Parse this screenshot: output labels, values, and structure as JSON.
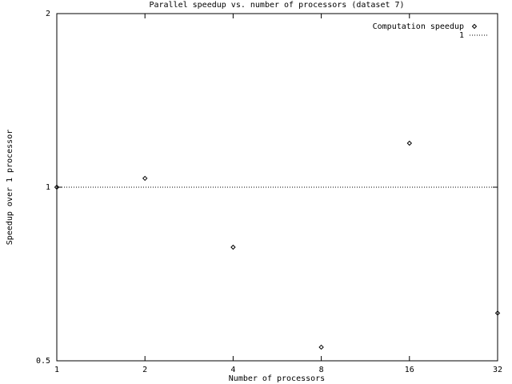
{
  "chart_data": {
    "type": "scatter",
    "title": "Parallel speedup vs. number of processors (dataset 7)",
    "x_label": "Number of processors",
    "y_label": "Speedup over 1 processor",
    "x": [
      1,
      2,
      4,
      8,
      16,
      32
    ],
    "series": [
      {
        "name": "Computation speedup",
        "color": "#000000",
        "style": "points",
        "values": [
          1,
          1.036,
          0.787,
          0.528,
          1.192,
          0.605
        ]
      },
      {
        "name": "1",
        "color": "#000000",
        "style": "line",
        "values": [
          1,
          1,
          1,
          1,
          1,
          1
        ]
      }
    ],
    "xlim": [
      1,
      32
    ],
    "ylim": [
      0.5,
      2
    ],
    "xticks": [
      1,
      2,
      4,
      8,
      16,
      32
    ],
    "yticks": [
      0.5,
      1,
      2
    ],
    "log_x": true,
    "log_y": true,
    "grid": false,
    "legend": "top-right"
  }
}
